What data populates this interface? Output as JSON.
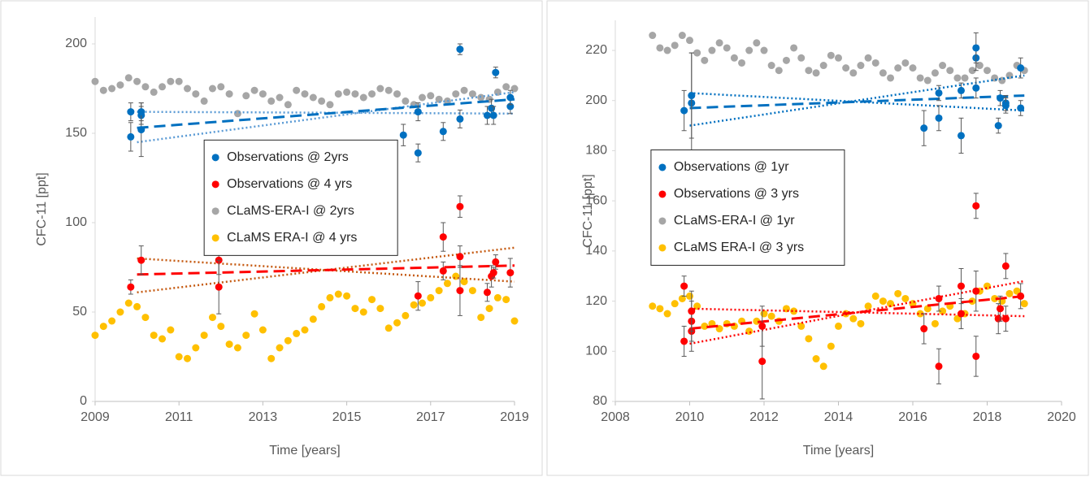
{
  "chart_data": [
    {
      "type": "scatter",
      "x_label": "Time [years]",
      "y_label": "CFC-11 [ppt]",
      "xlim": [
        2009,
        2019
      ],
      "xticks": [
        2009,
        2011,
        2013,
        2015,
        2017,
        2019
      ],
      "ylim": [
        0,
        215
      ],
      "yticks": [
        0,
        50,
        100,
        150,
        200
      ],
      "legend": "center",
      "series": [
        {
          "name": "Observations @ 2yrs",
          "color": "#0070c0",
          "x": [
            2009.85,
            2009.85,
            2010.1,
            2010.1,
            2010.1,
            2016.35,
            2016.7,
            2016.7,
            2017.3,
            2017.7,
            2017.7,
            2018.35,
            2018.45,
            2018.55,
            2018.5,
            2018.9,
            2018.9
          ],
          "values": [
            148,
            162,
            152,
            160,
            162,
            149,
            139,
            162,
            151,
            197,
            158,
            160,
            164,
            184,
            160,
            165,
            170
          ],
          "errors": [
            8,
            5,
            15,
            5,
            5,
            6,
            5,
            5,
            5,
            3,
            5,
            5,
            5,
            3,
            5,
            4,
            4
          ]
        },
        {
          "name": "Observations @ 4 yrs",
          "color": "#ff0000",
          "x": [
            2009.85,
            2010.1,
            2011.95,
            2011.95,
            2016.7,
            2017.3,
            2017.3,
            2017.7,
            2017.7,
            2017.7,
            2018.35,
            2018.45,
            2018.55,
            2018.5,
            2018.9
          ],
          "values": [
            64,
            79,
            79,
            64,
            59,
            92,
            73,
            109,
            81,
            62,
            61,
            70,
            78,
            72,
            72
          ],
          "errors": [
            4,
            8,
            8,
            15,
            8,
            8,
            5,
            6,
            6,
            14,
            5,
            6,
            4,
            3,
            8
          ]
        },
        {
          "name": "CLaMS-ERA-I @ 2yrs",
          "color": "#a6a6a6",
          "x": [
            2009.0,
            2009.2,
            2009.4,
            2009.6,
            2009.8,
            2010.0,
            2010.2,
            2010.4,
            2010.6,
            2010.8,
            2011.0,
            2011.2,
            2011.4,
            2011.6,
            2011.8,
            2012.0,
            2012.2,
            2012.4,
            2012.6,
            2012.8,
            2013.0,
            2013.2,
            2013.4,
            2013.6,
            2013.8,
            2014.0,
            2014.2,
            2014.4,
            2014.6,
            2014.8,
            2015.0,
            2015.2,
            2015.4,
            2015.6,
            2015.8,
            2016.0,
            2016.2,
            2016.4,
            2016.6,
            2016.8,
            2017.0,
            2017.2,
            2017.4,
            2017.6,
            2017.8,
            2018.0,
            2018.2,
            2018.4,
            2018.6,
            2018.8,
            2019.0
          ],
          "values": [
            179,
            174,
            175,
            177,
            181,
            179,
            176,
            173,
            176,
            179,
            179,
            175,
            172,
            168,
            175,
            176,
            172,
            161,
            171,
            174,
            172,
            168,
            170,
            166,
            174,
            172,
            170,
            168,
            166,
            172,
            173,
            172,
            170,
            172,
            175,
            174,
            172,
            168,
            166,
            170,
            171,
            169,
            168,
            172,
            174,
            172,
            170,
            169,
            173,
            176,
            175
          ]
        },
        {
          "name": "CLaMS ERA-I @ 4 yrs",
          "color": "#ffc000",
          "x": [
            2009.0,
            2009.2,
            2009.4,
            2009.6,
            2009.8,
            2010.0,
            2010.2,
            2010.4,
            2010.6,
            2010.8,
            2011.0,
            2011.2,
            2011.4,
            2011.6,
            2011.8,
            2012.0,
            2012.2,
            2012.4,
            2012.6,
            2012.8,
            2013.0,
            2013.2,
            2013.4,
            2013.6,
            2013.8,
            2014.0,
            2014.2,
            2014.4,
            2014.6,
            2014.8,
            2015.0,
            2015.2,
            2015.4,
            2015.6,
            2015.8,
            2016.0,
            2016.2,
            2016.4,
            2016.6,
            2016.8,
            2017.0,
            2017.2,
            2017.4,
            2017.6,
            2017.8,
            2018.0,
            2018.2,
            2018.4,
            2018.6,
            2018.8,
            2019.0
          ],
          "values": [
            37,
            42,
            45,
            50,
            55,
            53,
            47,
            37,
            35,
            40,
            25,
            24,
            30,
            37,
            47,
            42,
            32,
            30,
            37,
            49,
            40,
            24,
            30,
            34,
            38,
            40,
            46,
            53,
            58,
            60,
            59,
            52,
            50,
            57,
            52,
            41,
            44,
            48,
            54,
            55,
            58,
            62,
            66,
            70,
            67,
            62,
            47,
            52,
            58,
            57,
            45
          ]
        }
      ],
      "trend_lines": [
        {
          "color": "#5b9bd5",
          "dash": "dotted",
          "x": [
            2010,
            2019
          ],
          "values": [
            162,
            161
          ]
        },
        {
          "color": "#5b9bd5",
          "dash": "dotted",
          "x": [
            2010,
            2019
          ],
          "values": [
            145,
            173
          ]
        },
        {
          "color": "#0070c0",
          "dash": "dashed",
          "x": [
            2010,
            2019
          ],
          "values": [
            153,
            169
          ]
        },
        {
          "color": "#c55a11",
          "dash": "dotted",
          "x": [
            2010,
            2019
          ],
          "values": [
            80,
            67
          ]
        },
        {
          "color": "#c55a11",
          "dash": "dotted",
          "x": [
            2010,
            2019
          ],
          "values": [
            61,
            86
          ]
        },
        {
          "color": "#ff0000",
          "dash": "dashed",
          "x": [
            2010,
            2019
          ],
          "values": [
            71,
            76
          ]
        }
      ]
    },
    {
      "type": "scatter",
      "x_label": "Time [years]",
      "y_label": "CFC-11 [ppt]",
      "xlim": [
        2008,
        2020
      ],
      "xticks": [
        2008,
        2010,
        2012,
        2014,
        2016,
        2018,
        2020
      ],
      "ylim": [
        80,
        232
      ],
      "yticks": [
        80,
        100,
        120,
        140,
        160,
        180,
        200,
        220
      ],
      "legend": "center-left",
      "series": [
        {
          "name": "Observations @ 1yr",
          "color": "#0070c0",
          "x": [
            2009.85,
            2010.05,
            2010.05,
            2016.3,
            2016.7,
            2016.7,
            2017.3,
            2017.3,
            2017.7,
            2017.7,
            2017.7,
            2018.3,
            2018.35,
            2018.5,
            2018.5,
            2018.9,
            2018.9
          ],
          "values": [
            196,
            199,
            202,
            189,
            193,
            203,
            186,
            204,
            217,
            221,
            205,
            190,
            201,
            199,
            198,
            197,
            213
          ],
          "errors": [
            8,
            20,
            17,
            7,
            5,
            3,
            7,
            3,
            5,
            6,
            4,
            3,
            3,
            3,
            3,
            3,
            4
          ]
        },
        {
          "name": "Observations @ 3 yrs",
          "color": "#ff0000",
          "x": [
            2009.85,
            2009.85,
            2010.05,
            2010.05,
            2010.05,
            2011.95,
            2011.95,
            2016.3,
            2016.7,
            2016.7,
            2017.3,
            2017.3,
            2017.7,
            2017.7,
            2017.7,
            2018.3,
            2018.35,
            2018.5,
            2018.5,
            2018.9
          ],
          "values": [
            104,
            126,
            108,
            112,
            116,
            96,
            110,
            109,
            94,
            121,
            115,
            126,
            158,
            98,
            124,
            113,
            117,
            134,
            113,
            122
          ],
          "errors": [
            6,
            4,
            8,
            8,
            8,
            15,
            8,
            6,
            7,
            5,
            6,
            7,
            5,
            8,
            8,
            6,
            5,
            5,
            5,
            5
          ]
        },
        {
          "name": "CLaMS-ERA-I @ 1yr",
          "color": "#a6a6a6",
          "x": [
            2009.0,
            2009.2,
            2009.4,
            2009.6,
            2009.8,
            2010.0,
            2010.2,
            2010.4,
            2010.6,
            2010.8,
            2011.0,
            2011.2,
            2011.4,
            2011.6,
            2011.8,
            2012.0,
            2012.2,
            2012.4,
            2012.6,
            2012.8,
            2013.0,
            2013.2,
            2013.4,
            2013.6,
            2013.8,
            2014.0,
            2014.2,
            2014.4,
            2014.6,
            2014.8,
            2015.0,
            2015.2,
            2015.4,
            2015.6,
            2015.8,
            2016.0,
            2016.2,
            2016.4,
            2016.6,
            2016.8,
            2017.0,
            2017.2,
            2017.4,
            2017.6,
            2017.8,
            2018.0,
            2018.2,
            2018.4,
            2018.6,
            2018.8,
            2019.0
          ],
          "values": [
            226,
            221,
            220,
            222,
            226,
            224,
            219,
            216,
            220,
            223,
            221,
            217,
            215,
            220,
            223,
            220,
            214,
            212,
            216,
            221,
            217,
            212,
            211,
            214,
            218,
            217,
            213,
            211,
            214,
            217,
            215,
            211,
            209,
            213,
            215,
            213,
            209,
            208,
            211,
            214,
            212,
            209,
            209,
            212,
            214,
            212,
            209,
            208,
            210,
            214,
            212
          ]
        },
        {
          "name": "CLaMS ERA-I @ 3 yrs",
          "color": "#ffc000",
          "x": [
            2009.0,
            2009.2,
            2009.4,
            2009.6,
            2009.8,
            2010.0,
            2010.2,
            2010.4,
            2010.6,
            2010.8,
            2011.0,
            2011.2,
            2011.4,
            2011.6,
            2011.8,
            2012.0,
            2012.2,
            2012.4,
            2012.6,
            2012.8,
            2013.0,
            2013.2,
            2013.4,
            2013.6,
            2013.8,
            2014.0,
            2014.2,
            2014.4,
            2014.6,
            2014.8,
            2015.0,
            2015.2,
            2015.4,
            2015.6,
            2015.8,
            2016.0,
            2016.2,
            2016.4,
            2016.6,
            2016.8,
            2017.0,
            2017.2,
            2017.4,
            2017.6,
            2017.8,
            2018.0,
            2018.2,
            2018.4,
            2018.6,
            2018.8,
            2019.0
          ],
          "values": [
            118,
            117,
            115,
            119,
            121,
            122,
            118,
            110,
            111,
            109,
            111,
            110,
            112,
            108,
            112,
            115,
            114,
            112,
            117,
            116,
            110,
            105,
            97,
            94,
            102,
            110,
            115,
            113,
            111,
            118,
            122,
            120,
            119,
            123,
            121,
            119,
            115,
            117,
            111,
            116,
            118,
            113,
            115,
            120,
            124,
            126,
            121,
            120,
            123,
            124,
            119
          ]
        }
      ],
      "trend_lines": [
        {
          "color": "#0070c0",
          "dash": "dotted",
          "x": [
            2010,
            2019
          ],
          "values": [
            203,
            196
          ]
        },
        {
          "color": "#0070c0",
          "dash": "dotted",
          "x": [
            2010,
            2019
          ],
          "values": [
            190,
            210
          ]
        },
        {
          "color": "#0070c0",
          "dash": "dashed",
          "x": [
            2010,
            2019
          ],
          "values": [
            197,
            202
          ]
        },
        {
          "color": "#ff0000",
          "dash": "dotted",
          "x": [
            2010,
            2019
          ],
          "values": [
            103,
            128
          ]
        },
        {
          "color": "#ff0000",
          "dash": "dotted",
          "x": [
            2010,
            2019
          ],
          "values": [
            117,
            114
          ]
        },
        {
          "color": "#ff0000",
          "dash": "dashed",
          "x": [
            2010,
            2019
          ],
          "values": [
            109,
            122
          ]
        }
      ]
    }
  ]
}
